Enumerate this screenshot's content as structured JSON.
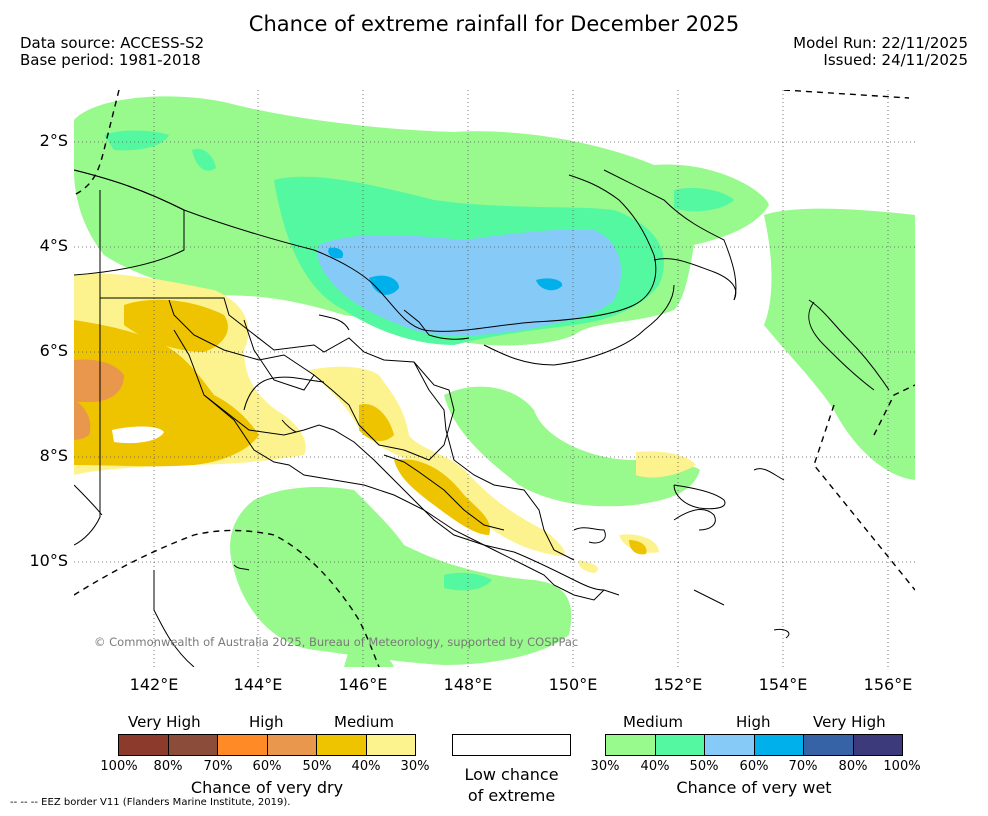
{
  "header": {
    "title": "Chance of extreme rainfall for December 2025",
    "data_source": "Data source: ACCESS-S2",
    "base_period": "Base period: 1981-2018",
    "model_run": "Model Run: 22/11/2025",
    "issued": "Issued: 24/11/2025"
  },
  "map": {
    "copyright": "© Commonwealth of Australia 2025, Bureau of Meteorology, supported by COSPPac",
    "lat_labels": [
      "2°S",
      "4°S",
      "6°S",
      "8°S",
      "10°S"
    ],
    "lon_labels": [
      "142°E",
      "144°E",
      "146°E",
      "148°E",
      "150°E",
      "152°E",
      "154°E",
      "156°E"
    ]
  },
  "legend": {
    "dry": {
      "headers": [
        "Very High",
        "High",
        "Medium"
      ],
      "ticks": [
        "100%",
        "80%",
        "70%",
        "60%",
        "50%",
        "40%",
        "30%"
      ],
      "colors": [
        "#8b3a2b",
        "#8b4c3a",
        "#ff8a26",
        "#e8974c",
        "#eec300",
        "#fdf38e"
      ],
      "title": "Chance of very dry"
    },
    "low": {
      "title_line1": "Low chance",
      "title_line2": "of extreme"
    },
    "wet": {
      "headers": [
        "Medium",
        "High",
        "Very High"
      ],
      "ticks": [
        "30%",
        "40%",
        "50%",
        "60%",
        "70%",
        "80%",
        "100%"
      ],
      "colors": [
        "#98f98d",
        "#53f8a1",
        "#86cbf8",
        "#00b0ea",
        "#3563a6",
        "#3c3a7a"
      ],
      "title": "Chance of very wet"
    },
    "eez_note": "--  --  -- EEZ border V11 (Flanders Marine Institute, 2019)."
  }
}
